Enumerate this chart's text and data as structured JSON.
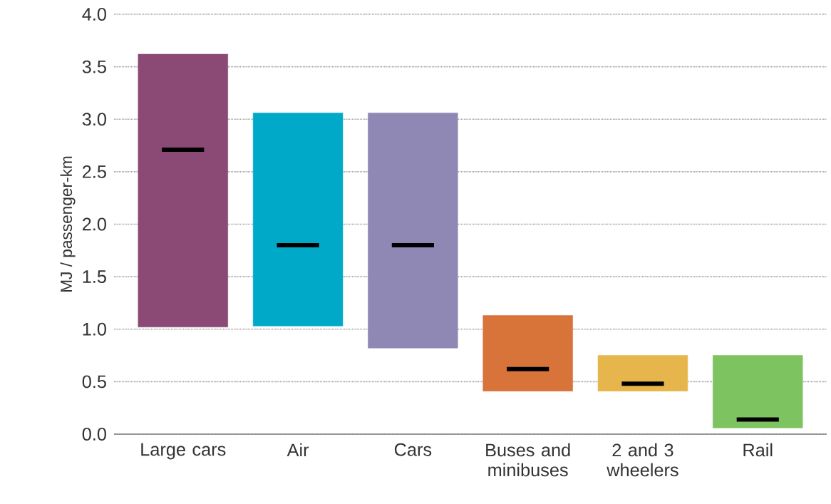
{
  "chart_data": {
    "type": "box",
    "ylabel": "MJ / passenger-km",
    "categories": [
      "Large cars",
      "Air",
      "Cars",
      "Buses and minibuses",
      "2 and 3 wheelers",
      "Rail"
    ],
    "colors": [
      "#8b4a75",
      "#00a9c8",
      "#8f88b5",
      "#d8733a",
      "#e6b54b",
      "#7dc360"
    ],
    "boxes": [
      {
        "low": 1.02,
        "q1": 1.02,
        "median": 2.71,
        "q3": 3.62,
        "high": 3.62
      },
      {
        "low": 1.03,
        "q1": 1.03,
        "median": 1.8,
        "q3": 3.06,
        "high": 3.06
      },
      {
        "low": 0.82,
        "q1": 0.82,
        "median": 1.8,
        "q3": 3.06,
        "high": 3.06
      },
      {
        "low": 0.41,
        "q1": 0.41,
        "median": 0.62,
        "q3": 1.13,
        "high": 1.13
      },
      {
        "low": 0.41,
        "q1": 0.41,
        "median": 0.48,
        "q3": 0.75,
        "high": 0.75
      },
      {
        "low": 0.06,
        "q1": 0.06,
        "median": 0.14,
        "q3": 0.75,
        "high": 0.75
      }
    ],
    "ylim": [
      0,
      4
    ],
    "yticks": [
      {
        "value": 0,
        "label": "0.0"
      },
      {
        "value": 0.5,
        "label": "0.5"
      },
      {
        "value": 1,
        "label": "1.0"
      },
      {
        "value": 1.5,
        "label": "1.5"
      },
      {
        "value": 2,
        "label": "2.0"
      },
      {
        "value": 2.5,
        "label": "2.5"
      },
      {
        "value": 3,
        "label": "3.0"
      },
      {
        "value": 3.5,
        "label": "3.5"
      },
      {
        "value": 4,
        "label": "4.0"
      }
    ],
    "grid": "y"
  }
}
